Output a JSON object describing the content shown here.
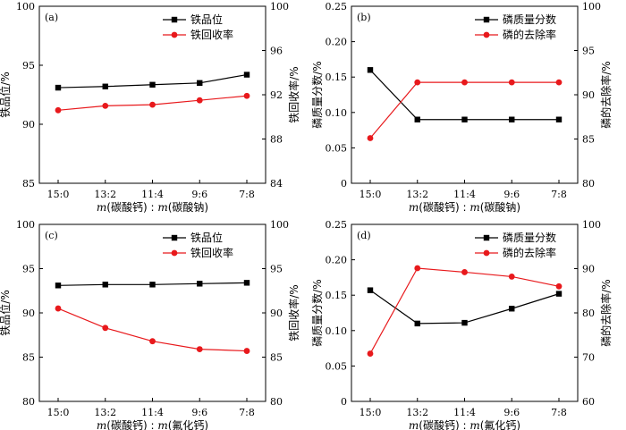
{
  "chart_data": [
    {
      "type": "line",
      "panel_label": "(a)",
      "categories": [
        "15:0",
        "13:2",
        "11:4",
        "9:6",
        "7:8"
      ],
      "xlabel_prefix": "m",
      "xlabel_mid": "(碳酸钙) : ",
      "xlabel_prefix2": "m",
      "xlabel_suffix": "(碳酸钠)",
      "ylabel_left": "铁品位/%",
      "ylabel_right": "铁回收率/%",
      "ylim_left": [
        85,
        100
      ],
      "yticks_left": [
        "85",
        "90",
        "95",
        "100"
      ],
      "ylim_right": [
        84,
        100
      ],
      "yticks_right": [
        "84",
        "88",
        "92",
        "96",
        "100"
      ],
      "legend_position": "top-right",
      "series": [
        {
          "name": "铁品位",
          "axis": "left",
          "marker": "square",
          "color": "#000000",
          "values": [
            93.1,
            93.2,
            93.35,
            93.5,
            94.2
          ]
        },
        {
          "name": "铁回收率",
          "axis": "right",
          "marker": "circle",
          "color": "#e8191c",
          "values": [
            90.6,
            91.0,
            91.1,
            91.5,
            91.9
          ]
        }
      ]
    },
    {
      "type": "line",
      "panel_label": "(b)",
      "categories": [
        "15:0",
        "13:2",
        "11:4",
        "9:6",
        "7:8"
      ],
      "xlabel_prefix": "m",
      "xlabel_mid": "(碳酸钙) : ",
      "xlabel_prefix2": "m",
      "xlabel_suffix": "(碳酸钠)",
      "ylabel_left": "磷质量分数/%",
      "ylabel_right": "磷的去除率/%",
      "ylim_left": [
        0,
        0.25
      ],
      "yticks_left": [
        "0",
        "0.05",
        "0.10",
        "0.15",
        "0.20",
        "0.25"
      ],
      "ylim_right": [
        80,
        100
      ],
      "yticks_right": [
        "80",
        "85",
        "90",
        "95",
        "100"
      ],
      "legend_position": "top-right",
      "series": [
        {
          "name": "磷质量分数",
          "axis": "left",
          "marker": "square",
          "color": "#000000",
          "values": [
            0.16,
            0.09,
            0.09,
            0.09,
            0.09
          ]
        },
        {
          "name": "磷的去除率",
          "axis": "right",
          "marker": "circle",
          "color": "#e8191c",
          "values": [
            85.1,
            91.4,
            91.4,
            91.4,
            91.4
          ]
        }
      ]
    },
    {
      "type": "line",
      "panel_label": "(c)",
      "categories": [
        "15:0",
        "13:2",
        "11:4",
        "9:6",
        "7:8"
      ],
      "xlabel_prefix": "m",
      "xlabel_mid": "(碳酸钙) : ",
      "xlabel_prefix2": "m",
      "xlabel_suffix": "(氟化钙)",
      "ylabel_left": "铁品位/%",
      "ylabel_right": "铁回收率/%",
      "ylim_left": [
        80,
        100
      ],
      "yticks_left": [
        "80",
        "85",
        "90",
        "95",
        "100"
      ],
      "ylim_right": [
        80,
        100
      ],
      "yticks_right": [
        "80",
        "85",
        "90",
        "95",
        "100"
      ],
      "legend_position": "top-right",
      "series": [
        {
          "name": "铁品位",
          "axis": "left",
          "marker": "square",
          "color": "#000000",
          "values": [
            93.1,
            93.2,
            93.2,
            93.3,
            93.4
          ]
        },
        {
          "name": "铁回收率",
          "axis": "right",
          "marker": "circle",
          "color": "#e8191c",
          "values": [
            90.5,
            88.3,
            86.8,
            85.9,
            85.7
          ]
        }
      ]
    },
    {
      "type": "line",
      "panel_label": "(d)",
      "categories": [
        "15:0",
        "13:2",
        "11:4",
        "9:6",
        "7:8"
      ],
      "xlabel_prefix": "m",
      "xlabel_mid": "(碳酸钙) : ",
      "xlabel_prefix2": "m",
      "xlabel_suffix": "(氟化钙)",
      "ylabel_left": "磷质量分数/%",
      "ylabel_right": "磷的去除率/%",
      "ylim_left": [
        0,
        0.25
      ],
      "yticks_left": [
        "0",
        "0.05",
        "0.10",
        "0.15",
        "0.20",
        "0.25"
      ],
      "ylim_right": [
        60,
        100
      ],
      "yticks_right": [
        "60",
        "70",
        "80",
        "90",
        "100"
      ],
      "legend_position": "top-right",
      "series": [
        {
          "name": "磷质量分数",
          "axis": "left",
          "marker": "square",
          "color": "#000000",
          "values": [
            0.157,
            0.11,
            0.111,
            0.131,
            0.152
          ]
        },
        {
          "name": "磷的去除率",
          "axis": "right",
          "marker": "circle",
          "color": "#e8191c",
          "values": [
            70.8,
            90.1,
            89.2,
            88.2,
            86.0
          ]
        }
      ]
    }
  ]
}
